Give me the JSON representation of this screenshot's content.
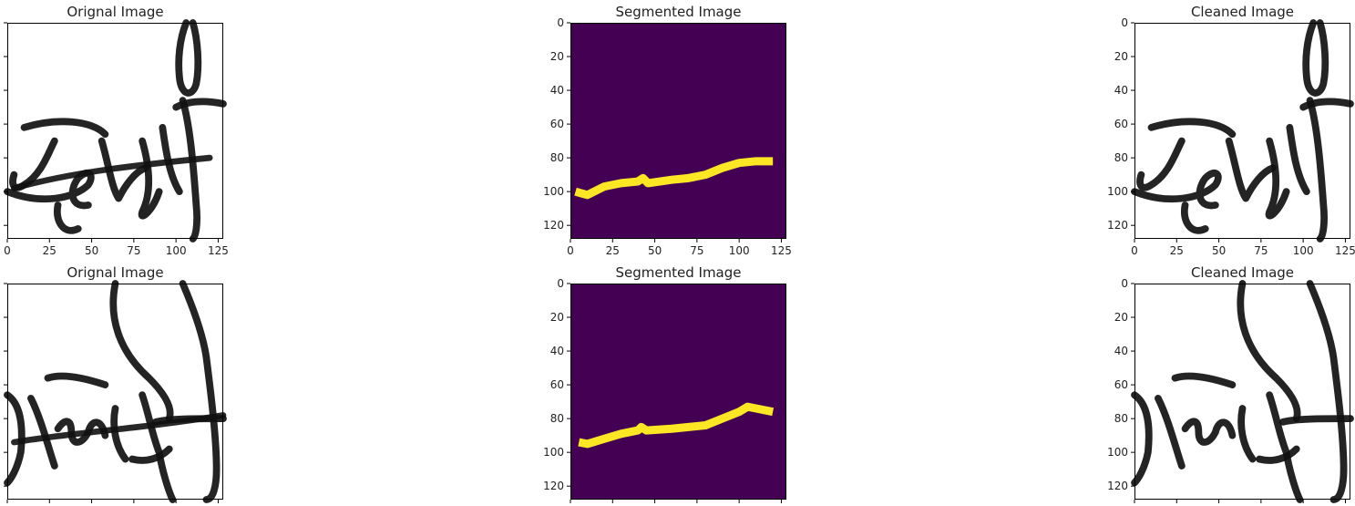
{
  "colors": {
    "background_fill": "#440154",
    "mask_fill": "#fde725",
    "ink": "#111111",
    "axes": "#000000"
  },
  "chart_data": [
    {
      "type": "image",
      "title": "Orignal Image",
      "content": "handwritten signature",
      "row": 1,
      "column": 1,
      "xticks": [
        "0",
        "25",
        "50",
        "75",
        "100",
        "125"
      ],
      "yticks": [],
      "xlim": [
        0,
        128
      ],
      "ylim": [
        128,
        0
      ],
      "grid": false
    },
    {
      "type": "image",
      "title": "Segmented Image",
      "content": "segmentation mask (yellow line on purple background)",
      "row": 1,
      "column": 2,
      "xticks": [
        "0",
        "25",
        "50",
        "75",
        "100",
        "125"
      ],
      "yticks": [
        "0",
        "20",
        "40",
        "60",
        "80",
        "100",
        "120"
      ],
      "xlim": [
        0,
        128
      ],
      "ylim": [
        128,
        0
      ],
      "grid": false,
      "line": {
        "x": [
          3,
          10,
          20,
          30,
          40,
          43,
          46,
          60,
          70,
          80,
          90,
          100,
          110,
          120
        ],
        "y": [
          100,
          102,
          97,
          95,
          94,
          92,
          95,
          93,
          92,
          90,
          86,
          83,
          82,
          82
        ]
      }
    },
    {
      "type": "image",
      "title": "Cleaned Image",
      "content": "handwritten signature with segmented line removed",
      "row": 1,
      "column": 3,
      "xticks": [
        "0",
        "25",
        "50",
        "75",
        "100",
        "125"
      ],
      "yticks": [
        "0",
        "20",
        "40",
        "60",
        "80",
        "100",
        "120"
      ],
      "xlim": [
        0,
        128
      ],
      "ylim": [
        128,
        0
      ],
      "grid": false
    },
    {
      "type": "image",
      "title": "Orignal Image",
      "content": "handwritten signature",
      "row": 2,
      "column": 1,
      "xticks": [],
      "yticks": [],
      "xlim": [
        0,
        128
      ],
      "ylim": [
        128,
        0
      ],
      "grid": false
    },
    {
      "type": "image",
      "title": "Segmented Image",
      "content": "segmentation mask (yellow line on purple background)",
      "row": 2,
      "column": 2,
      "xticks": [],
      "yticks": [
        "0",
        "20",
        "40",
        "60",
        "80",
        "100",
        "120"
      ],
      "xlim": [
        0,
        128
      ],
      "ylim": [
        128,
        0
      ],
      "grid": false,
      "line": {
        "x": [
          5,
          10,
          20,
          30,
          40,
          42,
          45,
          60,
          70,
          80,
          90,
          100,
          105,
          110,
          120
        ],
        "y": [
          94,
          95,
          92,
          89,
          87,
          85,
          87,
          86,
          85,
          84,
          80,
          76,
          73,
          74,
          76
        ]
      }
    },
    {
      "type": "image",
      "title": "Cleaned Image",
      "content": "handwritten signature with segmented line removed",
      "row": 2,
      "column": 3,
      "xticks": [],
      "yticks": [
        "0",
        "20",
        "40",
        "60",
        "80",
        "100",
        "120"
      ],
      "xlim": [
        0,
        128
      ],
      "ylim": [
        128,
        0
      ],
      "grid": false
    }
  ]
}
